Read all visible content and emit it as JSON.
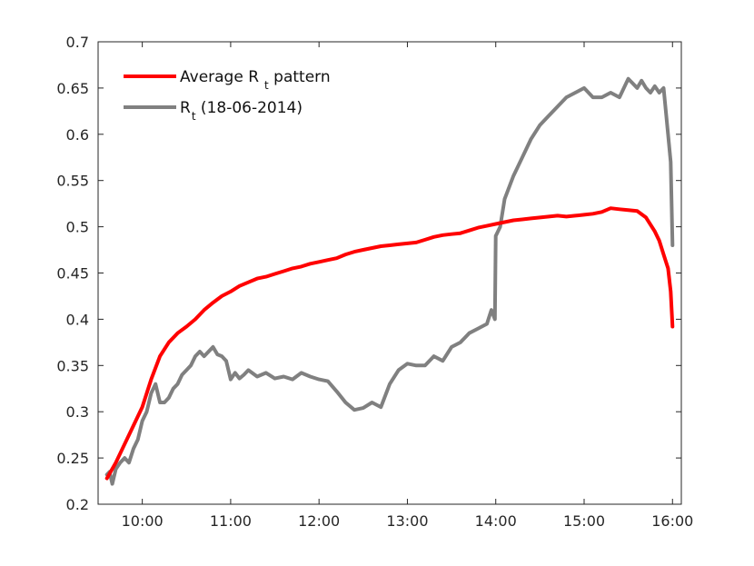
{
  "chart_data": {
    "type": "line",
    "title": "",
    "xlabel": "",
    "ylabel": "",
    "xlim": [
      9.5,
      16.1
    ],
    "ylim": [
      0.2,
      0.7
    ],
    "grid": false,
    "legend_position": "top-left",
    "x_ticks": [
      {
        "value": 10,
        "label": "10:00"
      },
      {
        "value": 11,
        "label": "11:00"
      },
      {
        "value": 12,
        "label": "12:00"
      },
      {
        "value": 13,
        "label": "13:00"
      },
      {
        "value": 14,
        "label": "14:00"
      },
      {
        "value": 15,
        "label": "15:00"
      },
      {
        "value": 16,
        "label": "16:00"
      }
    ],
    "y_ticks": [
      {
        "value": 0.2,
        "label": "0.2"
      },
      {
        "value": 0.25,
        "label": "0.25"
      },
      {
        "value": 0.3,
        "label": "0.3"
      },
      {
        "value": 0.35,
        "label": "0.35"
      },
      {
        "value": 0.4,
        "label": "0.4"
      },
      {
        "value": 0.45,
        "label": "0.45"
      },
      {
        "value": 0.5,
        "label": "0.5"
      },
      {
        "value": 0.55,
        "label": "0.55"
      },
      {
        "value": 0.6,
        "label": "0.6"
      },
      {
        "value": 0.65,
        "label": "0.65"
      },
      {
        "value": 0.7,
        "label": "0.7"
      }
    ],
    "series": [
      {
        "name": "Average R_t pattern",
        "legend_main": "Average R",
        "legend_sub": "t",
        "legend_after": " pattern",
        "color": "#ff0000",
        "x": [
          9.6,
          9.7,
          9.8,
          9.9,
          10.0,
          10.1,
          10.2,
          10.3,
          10.4,
          10.5,
          10.6,
          10.7,
          10.8,
          10.9,
          11.0,
          11.1,
          11.2,
          11.3,
          11.4,
          11.5,
          11.6,
          11.7,
          11.8,
          11.9,
          12.0,
          12.1,
          12.2,
          12.3,
          12.4,
          12.5,
          12.6,
          12.7,
          12.8,
          12.9,
          13.0,
          13.1,
          13.2,
          13.3,
          13.4,
          13.5,
          13.6,
          13.7,
          13.8,
          13.9,
          14.0,
          14.1,
          14.2,
          14.3,
          14.4,
          14.5,
          14.6,
          14.7,
          14.8,
          14.9,
          15.0,
          15.1,
          15.2,
          15.3,
          15.4,
          15.5,
          15.6,
          15.7,
          15.8,
          15.85,
          15.9,
          15.95,
          15.98,
          16.0
        ],
        "values": [
          0.228,
          0.245,
          0.265,
          0.285,
          0.305,
          0.335,
          0.36,
          0.375,
          0.385,
          0.392,
          0.4,
          0.41,
          0.418,
          0.425,
          0.43,
          0.436,
          0.44,
          0.444,
          0.446,
          0.449,
          0.452,
          0.455,
          0.457,
          0.46,
          0.462,
          0.464,
          0.466,
          0.47,
          0.473,
          0.475,
          0.477,
          0.479,
          0.48,
          0.481,
          0.482,
          0.483,
          0.486,
          0.489,
          0.491,
          0.492,
          0.493,
          0.496,
          0.499,
          0.501,
          0.503,
          0.505,
          0.507,
          0.508,
          0.509,
          0.51,
          0.511,
          0.512,
          0.511,
          0.512,
          0.513,
          0.514,
          0.516,
          0.52,
          0.519,
          0.518,
          0.517,
          0.51,
          0.495,
          0.485,
          0.47,
          0.455,
          0.43,
          0.392
        ]
      },
      {
        "name": "R_t (18-06-2014)",
        "legend_main": "R",
        "legend_sub": "t",
        "legend_after": " (18-06-2014)",
        "color": "#808080",
        "x": [
          9.6,
          9.63,
          9.66,
          9.7,
          9.75,
          9.8,
          9.85,
          9.9,
          9.95,
          10.0,
          10.05,
          10.1,
          10.15,
          10.2,
          10.25,
          10.3,
          10.35,
          10.4,
          10.45,
          10.5,
          10.55,
          10.6,
          10.65,
          10.7,
          10.75,
          10.8,
          10.85,
          10.9,
          10.95,
          11.0,
          11.05,
          11.1,
          11.15,
          11.2,
          11.3,
          11.4,
          11.5,
          11.6,
          11.7,
          11.8,
          11.9,
          12.0,
          12.1,
          12.2,
          12.3,
          12.4,
          12.5,
          12.6,
          12.7,
          12.8,
          12.9,
          13.0,
          13.1,
          13.2,
          13.3,
          13.4,
          13.5,
          13.6,
          13.7,
          13.8,
          13.9,
          13.95,
          13.99,
          14.0,
          14.05,
          14.1,
          14.2,
          14.3,
          14.4,
          14.5,
          14.6,
          14.7,
          14.8,
          14.9,
          15.0,
          15.1,
          15.2,
          15.3,
          15.4,
          15.5,
          15.55,
          15.6,
          15.65,
          15.7,
          15.75,
          15.8,
          15.85,
          15.9,
          15.95,
          15.98,
          16.0
        ],
        "values": [
          0.232,
          0.235,
          0.222,
          0.238,
          0.245,
          0.25,
          0.245,
          0.26,
          0.27,
          0.29,
          0.3,
          0.32,
          0.33,
          0.31,
          0.31,
          0.315,
          0.325,
          0.33,
          0.34,
          0.345,
          0.35,
          0.36,
          0.365,
          0.36,
          0.365,
          0.37,
          0.362,
          0.36,
          0.355,
          0.335,
          0.342,
          0.336,
          0.34,
          0.345,
          0.338,
          0.342,
          0.336,
          0.338,
          0.335,
          0.342,
          0.338,
          0.335,
          0.333,
          0.322,
          0.31,
          0.302,
          0.304,
          0.31,
          0.305,
          0.33,
          0.345,
          0.352,
          0.35,
          0.35,
          0.36,
          0.355,
          0.37,
          0.375,
          0.385,
          0.39,
          0.395,
          0.41,
          0.4,
          0.49,
          0.5,
          0.53,
          0.555,
          0.575,
          0.595,
          0.61,
          0.62,
          0.63,
          0.64,
          0.645,
          0.65,
          0.64,
          0.64,
          0.645,
          0.64,
          0.66,
          0.655,
          0.65,
          0.658,
          0.65,
          0.645,
          0.652,
          0.645,
          0.65,
          0.6,
          0.57,
          0.48
        ]
      }
    ]
  }
}
